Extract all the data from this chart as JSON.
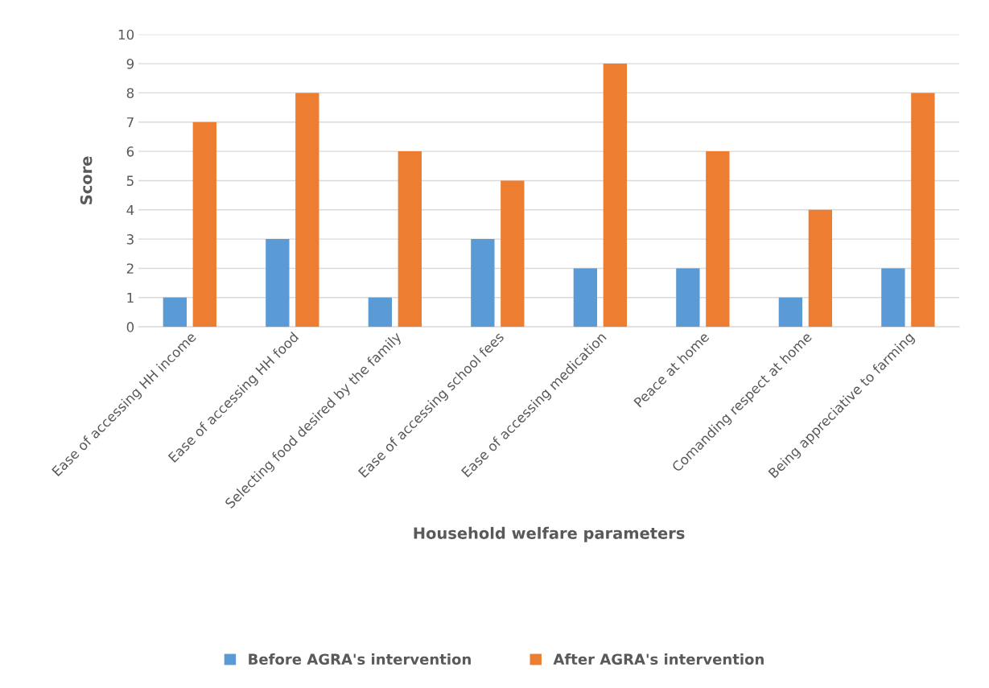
{
  "chart_data": {
    "type": "bar",
    "xlabel": "Household welfare parameters",
    "ylabel": "Score",
    "categories": [
      "Ease of accessing HH income",
      "Ease of accessing HH food",
      "Selecting food desired by the family",
      "Ease of accessing school fees",
      "Ease of accessing medication",
      "Peace at home",
      "Comanding respect at home",
      "Being appreciative to farming"
    ],
    "series": [
      {
        "name": "Before AGRA's intervention",
        "color": "#5b9bd5",
        "values": [
          1,
          3,
          1,
          3,
          2,
          2,
          1,
          2
        ]
      },
      {
        "name": "After AGRA's intervention",
        "color": "#ed7d31",
        "values": [
          7,
          8,
          6,
          5,
          9,
          6,
          4,
          8
        ]
      }
    ],
    "ylim": [
      0,
      10
    ],
    "yticks": [
      0,
      1,
      2,
      3,
      4,
      5,
      6,
      7,
      8,
      9,
      10
    ],
    "grid": "y",
    "legend": "bottom"
  }
}
